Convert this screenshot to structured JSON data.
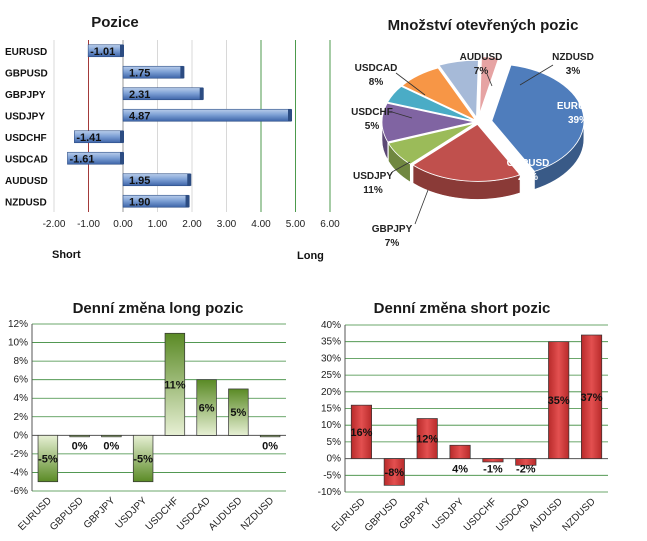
{
  "chart_data": [
    {
      "type": "bar",
      "orientation": "horizontal",
      "title": "Pozice",
      "categories": [
        "EURUSD",
        "GBPUSD",
        "GBPJPY",
        "USDJPY",
        "USDCHF",
        "USDCAD",
        "AUDUSD",
        "NZDUSD"
      ],
      "values": [
        -1.01,
        1.75,
        2.31,
        4.87,
        -1.41,
        -1.61,
        1.95,
        1.9
      ],
      "data_labels": [
        "-1.01",
        "1.75",
        "2.31",
        "4.87",
        "-1.41",
        "-1.61",
        "1.95",
        "1.90"
      ],
      "xlim": [
        -2.0,
        6.0
      ],
      "x_ticks": [
        "-2.00",
        "-1.00",
        "0.00",
        "1.00",
        "2.00",
        "3.00",
        "4.00",
        "5.00",
        "6.00"
      ],
      "left_label": "Short",
      "right_label": "Long",
      "colors": {
        "bar": "#5b86c6",
        "short_line": "#a33a3a",
        "long_line": "#4c9a4c"
      }
    },
    {
      "type": "pie",
      "title": "Množství otevřených pozic",
      "labels": [
        "EURUSD",
        "GBPUSD",
        "GBPJPY",
        "USDJPY",
        "USDCHF",
        "USDCAD",
        "AUDUSD",
        "NZDUSD"
      ],
      "values": [
        39,
        20,
        7,
        11,
        5,
        8,
        7,
        3
      ],
      "pct_labels": [
        "39%",
        "20%",
        "7%",
        "11%",
        "5%",
        "8%",
        "7%",
        "3%"
      ],
      "colors": [
        "#4f7dbc",
        "#c0504d",
        "#9bbb59",
        "#8064a2",
        "#4aacc6",
        "#f79646",
        "#a6bad8",
        "#e6a3a3"
      ]
    },
    {
      "type": "bar",
      "title": "Denní změna long pozic",
      "categories": [
        "EURUSD",
        "GBPUSD",
        "GBPJPY",
        "USDJPY",
        "USDCHF",
        "USDCAD",
        "AUDUSD",
        "NZDUSD"
      ],
      "values": [
        -5,
        0,
        0,
        -5,
        11,
        6,
        5,
        0
      ],
      "data_labels": [
        "-5%",
        "0%",
        "0%",
        "-5%",
        "11%",
        "6%",
        "5%",
        "0%"
      ],
      "ylim": [
        -6,
        12
      ],
      "y_ticks": [
        "-6%",
        "-4%",
        "-2%",
        "0%",
        "2%",
        "4%",
        "6%",
        "8%",
        "10%",
        "12%"
      ],
      "grid": true,
      "colors": {
        "bar_top": "#5a8a25",
        "bar_bottom": "#e7f0d4",
        "grid": "#3a8a3a"
      }
    },
    {
      "type": "bar",
      "title": "Denní změna short pozic",
      "categories": [
        "EURUSD",
        "GBPUSD",
        "GBPJPY",
        "USDJPY",
        "USDCHF",
        "USDCAD",
        "AUDUSD",
        "NZDUSD"
      ],
      "values": [
        16,
        -8,
        12,
        4,
        -1,
        -2,
        35,
        37
      ],
      "data_labels": [
        "16%",
        "-8%",
        "12%",
        "4%",
        "-1%",
        "-2%",
        "35%",
        "37%"
      ],
      "ylim": [
        -10,
        40
      ],
      "y_ticks": [
        "-10%",
        "-5%",
        "0%",
        "5%",
        "10%",
        "15%",
        "20%",
        "25%",
        "30%",
        "35%",
        "40%"
      ],
      "grid": true,
      "colors": {
        "bar": "#d63b3b",
        "grid": "#3a8a3a"
      }
    }
  ]
}
